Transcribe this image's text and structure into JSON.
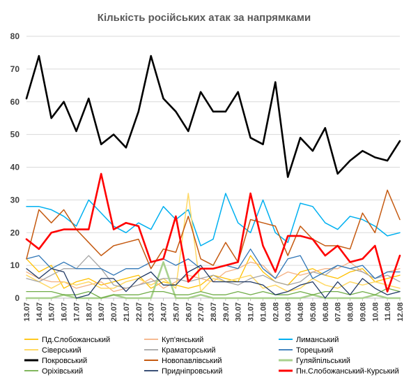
{
  "chart_data": {
    "type": "line",
    "title": "Кількість російських атак за напрямками",
    "xlabel": "",
    "ylabel": "",
    "ylim": [
      0,
      80
    ],
    "yticks": [
      0,
      10,
      20,
      30,
      40,
      50,
      60,
      70,
      80
    ],
    "grid": "horizontal",
    "legend_position": "bottom",
    "x": [
      "13.07",
      "14.07",
      "15.07",
      "16.07",
      "17.07",
      "18.07",
      "19.07",
      "20.07",
      "21.07",
      "22.07",
      "23.07",
      "24.07",
      "25.07",
      "26.07",
      "27.07",
      "28.07",
      "29.07",
      "30.07",
      "31.07",
      "01.08",
      "02.08",
      "03.08",
      "04.08",
      "05.08",
      "06.08",
      "07.08",
      "08.08",
      "09.08",
      "10.08",
      "11.08",
      "12.08"
    ],
    "series": [
      {
        "name": "Пд.Слобожанський",
        "color": "#ffc000",
        "width": 1.3,
        "values": [
          12,
          8,
          10,
          3,
          5,
          6,
          4,
          5,
          6,
          7,
          3,
          5,
          4,
          3,
          4,
          7,
          6,
          5,
          13,
          8,
          5,
          4,
          8,
          9,
          7,
          6,
          8,
          9,
          5,
          6,
          7
        ]
      },
      {
        "name": "Куп'янський",
        "color": "#f4b183",
        "width": 1.3,
        "values": [
          8,
          6,
          5,
          5,
          3,
          4,
          5,
          2,
          3,
          4,
          6,
          3,
          5,
          7,
          6,
          5,
          8,
          9,
          11,
          10,
          6,
          8,
          7,
          8,
          9,
          9,
          11,
          8,
          6,
          8,
          9
        ]
      },
      {
        "name": "Лиманський",
        "color": "#00b0f0",
        "width": 1.5,
        "values": [
          28,
          28,
          27,
          25,
          22,
          30,
          26,
          22,
          20,
          23,
          21,
          28,
          24,
          27,
          16,
          18,
          32,
          23,
          20,
          30,
          20,
          17,
          29,
          28,
          23,
          21,
          25,
          24,
          22,
          19,
          20
        ]
      },
      {
        "name": "Сіверський",
        "color": "#ffd966",
        "width": 1.5,
        "values": [
          7,
          5,
          3,
          5,
          4,
          5,
          3,
          3,
          5,
          6,
          4,
          6,
          3,
          32,
          2,
          6,
          5,
          6,
          7,
          3,
          4,
          2,
          3,
          6,
          4,
          3,
          5,
          4,
          5,
          4,
          3
        ]
      },
      {
        "name": "Краматорський",
        "color": "#a5a5a5",
        "width": 1.3,
        "values": [
          6,
          5,
          7,
          9,
          9,
          13,
          9,
          4,
          3,
          4,
          5,
          6,
          6,
          5,
          6,
          7,
          5,
          4,
          6,
          7,
          5,
          4,
          5,
          8,
          7,
          10,
          9,
          8,
          6,
          7,
          5
        ]
      },
      {
        "name": "Торецький",
        "color": "#2e75b6",
        "width": 1.3,
        "values": [
          12,
          13,
          9,
          11,
          9,
          9,
          9,
          7,
          9,
          9,
          11,
          12,
          10,
          12,
          9,
          9,
          10,
          9,
          15,
          9,
          6,
          12,
          13,
          6,
          8,
          10,
          9,
          10,
          6,
          8,
          8
        ]
      },
      {
        "name": "Покровський",
        "color": "#000000",
        "width": 2.6,
        "values": [
          61,
          74,
          55,
          60,
          51,
          61,
          47,
          50,
          46,
          57,
          74,
          61,
          57,
          51,
          63,
          57,
          57,
          63,
          49,
          47,
          66,
          37,
          49,
          45,
          52,
          38,
          42,
          45,
          43,
          42,
          48
        ]
      },
      {
        "name": "Новопавлівський",
        "color": "#c55a11",
        "width": 1.5,
        "values": [
          12,
          27,
          23,
          27,
          21,
          17,
          13,
          16,
          17,
          18,
          9,
          15,
          14,
          25,
          12,
          10,
          17,
          11,
          24,
          23,
          22,
          13,
          22,
          18,
          16,
          16,
          15,
          26,
          20,
          33,
          24
        ]
      },
      {
        "name": "Гуляйпільський",
        "color": "#a9d18e",
        "width": 2.6,
        "values": [
          0,
          0,
          0,
          1,
          0,
          0,
          0,
          1,
          0,
          0,
          0,
          11,
          0,
          0,
          1,
          0,
          0,
          0,
          0,
          0,
          0,
          0,
          0,
          1,
          0,
          0,
          0,
          0,
          1,
          0,
          0
        ]
      },
      {
        "name": "Оріхівський",
        "color": "#70ad47",
        "width": 1.3,
        "values": [
          2,
          2,
          2,
          1,
          1,
          2,
          0,
          1,
          1,
          1,
          2,
          2,
          1,
          1,
          2,
          1,
          1,
          2,
          1,
          2,
          1,
          1,
          2,
          1,
          2,
          2,
          1,
          2,
          1,
          3,
          2
        ]
      },
      {
        "name": "Придніпровський",
        "color": "#1f3864",
        "width": 1.3,
        "values": [
          9,
          6,
          9,
          8,
          0,
          1,
          6,
          6,
          2,
          6,
          8,
          4,
          4,
          8,
          10,
          5,
          5,
          5,
          5,
          4,
          1,
          2,
          4,
          5,
          0,
          5,
          1,
          6,
          3,
          1,
          2
        ]
      },
      {
        "name": "Пн.Слобожанський-Курський",
        "color": "#ff0000",
        "width": 2.6,
        "values": [
          18,
          15,
          20,
          21,
          21,
          21,
          38,
          21,
          23,
          22,
          11,
          12,
          25,
          5,
          9,
          9,
          10,
          11,
          32,
          16,
          8,
          19,
          19,
          18,
          13,
          16,
          11,
          12,
          16,
          2,
          13
        ]
      }
    ]
  }
}
